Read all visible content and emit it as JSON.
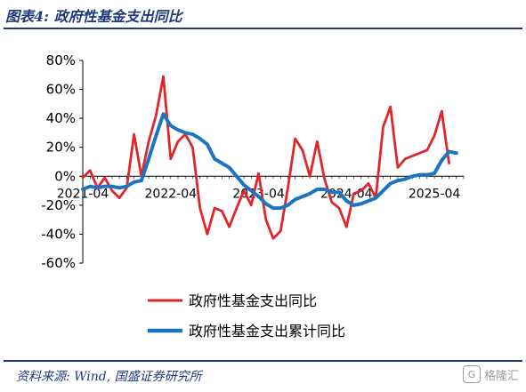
{
  "header": {
    "title": "图表4:  政府性基金支出同比"
  },
  "footer": {
    "source": "资料来源:  Wind, 国盛证券研究所",
    "watermark": "格隆汇"
  },
  "chart_data": {
    "type": "line",
    "title": "图表4:  政府性基金支出同比",
    "ylim": [
      -60,
      80
    ],
    "yticks": [
      -60,
      -40,
      -20,
      0,
      20,
      40,
      60,
      80
    ],
    "ytick_labels": [
      "-60%",
      "-40%",
      "-20%",
      "0%",
      "20%",
      "40%",
      "60%",
      "80%"
    ],
    "xlim": [
      0,
      52
    ],
    "xtick_positions": [
      0,
      12,
      24,
      36,
      48
    ],
    "xtick_labels": [
      "2021-04",
      "2022-04",
      "2023-04",
      "2024-04",
      "2025-04"
    ],
    "legend_position": "bottom",
    "grid": false,
    "series": [
      {
        "name": "政府性基金支出同比",
        "color": "#e0262b",
        "values": [
          -1,
          4,
          -8,
          -1,
          -10,
          -15,
          -8,
          29,
          0,
          24,
          42,
          69,
          12,
          24,
          29,
          20,
          -22,
          -40,
          -22,
          -24,
          -35,
          -22,
          -10,
          -20,
          2,
          -30,
          -43,
          -38,
          -8,
          26,
          18,
          0,
          24,
          -2,
          -18,
          -22,
          -35,
          -12,
          -10,
          -5,
          -15,
          34,
          48,
          6,
          12,
          14,
          16,
          18,
          28,
          45,
          9
        ]
      },
      {
        "name": "政府性基金支出累计同比",
        "color": "#1b75c0",
        "values": [
          -9,
          -7,
          -8,
          -7,
          -7,
          -8,
          -7,
          -4,
          -3,
          12,
          28,
          43,
          35,
          32,
          30,
          29,
          26,
          22,
          12,
          9,
          6,
          0,
          -6,
          -10,
          -14,
          -19,
          -22,
          -22,
          -20,
          -16,
          -14,
          -12,
          -9,
          -9,
          -11,
          -11,
          -17,
          -20,
          -19,
          -17,
          -15,
          -10,
          -5,
          -3,
          -2,
          0,
          1,
          1,
          2,
          11,
          17,
          16
        ]
      }
    ]
  }
}
